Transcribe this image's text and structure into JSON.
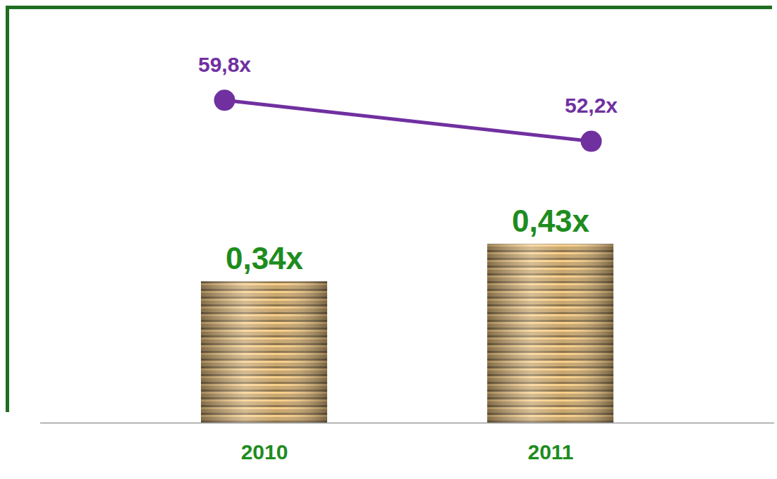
{
  "chart_data": {
    "type": "bar",
    "categories": [
      "2010",
      "2011"
    ],
    "series": [
      {
        "type": "bar",
        "color": "#c8a66e",
        "values": [
          0.34,
          0.43
        ],
        "value_labels": [
          "0,34x",
          "0,43x"
        ]
      },
      {
        "type": "line",
        "axis": "y2",
        "color": "#7030a0",
        "marker": "circle",
        "values": [
          59.8,
          52.2
        ],
        "value_labels": [
          "59,8x",
          "52,2x"
        ]
      }
    ],
    "ylim": [
      0,
      1
    ],
    "y2lim": [
      0,
      77
    ],
    "data_labels": true,
    "tick_labels": "x"
  }
}
